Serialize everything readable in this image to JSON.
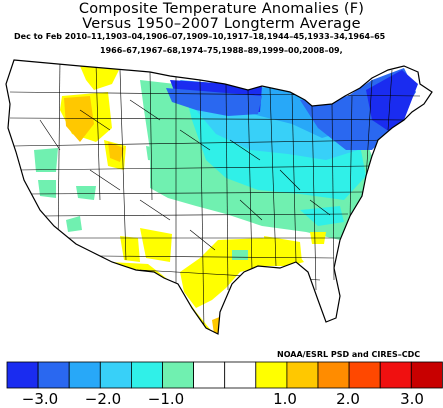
{
  "title": {
    "line1": "Composite Temperature Anomalies (F)",
    "line2": "Versus 1950–2007 Longterm Average"
  },
  "composite": {
    "line1": "Dec to Feb  2010–11,1903–04,1906–07,1909–10,1917–18,1944–45,1933–34,1964–65",
    "line2": "1966–67,1967–68,1974–75,1988–89,1999–00,2008–09,"
  },
  "credit": "NOAA/ESRL PSD and CIRES–CDC",
  "legend": {
    "colors": [
      "#1a2cf0",
      "#2a68f0",
      "#28a8f8",
      "#38d0f8",
      "#30f0e8",
      "#70f0b0",
      "#ffffff",
      "#ffffff",
      "#ffff00",
      "#ffc800",
      "#ff8c00",
      "#ff4800",
      "#f01010",
      "#c80000"
    ],
    "ticks": [
      "−3.0",
      "−2.0",
      "−1.0",
      "1.0",
      "2.0",
      "3.0"
    ]
  },
  "map": {
    "colors": {
      "dark_blue": "#1a2cf0",
      "blue": "#2a68f0",
      "sky": "#28a8f8",
      "light_sky": "#38d0f8",
      "cyan": "#30f0e8",
      "sea_green": "#70f0b0",
      "none": "#ffffff",
      "yellow": "#ffff00",
      "orange": "#ffc800"
    }
  }
}
